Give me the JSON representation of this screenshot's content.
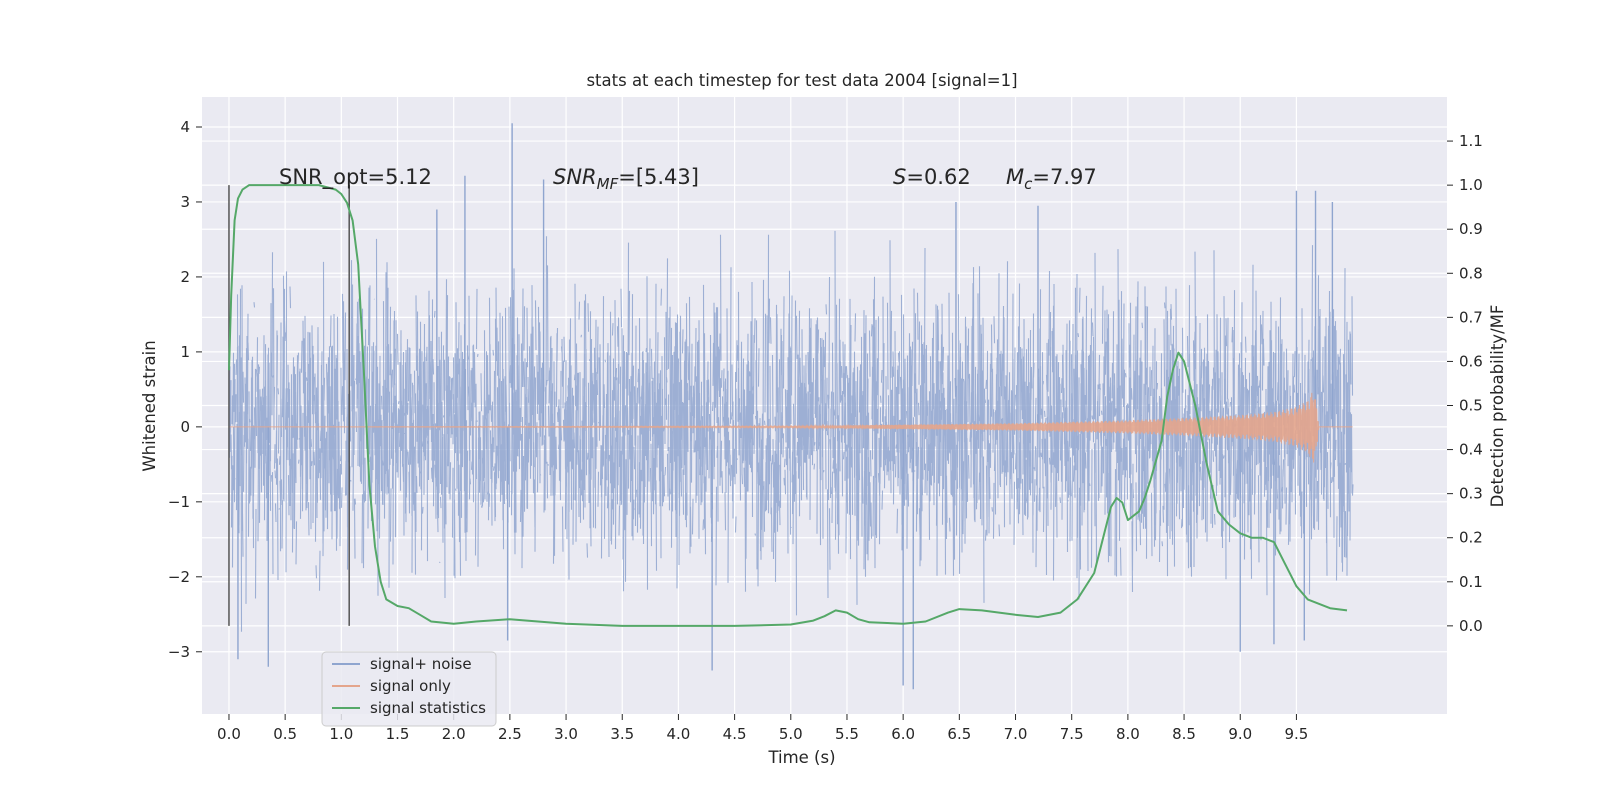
{
  "chart_data": {
    "type": "line",
    "title": "stats at each timestep for test data 2004 [signal=1]",
    "xlabel": "Time (s)",
    "ylabel": "Whitened strain",
    "y2label": "Detection probability/MF",
    "xlim": [
      -0.24,
      10.84
    ],
    "ylim": [
      -3.83,
      4.4
    ],
    "y2lim": [
      -0.2,
      1.2
    ],
    "x_ticks": [
      "0.0",
      "0.5",
      "1.0",
      "1.5",
      "2.0",
      "2.5",
      "3.0",
      "3.5",
      "4.0",
      "4.5",
      "5.0",
      "5.5",
      "6.0",
      "6.5",
      "7.0",
      "7.5",
      "8.0",
      "8.5",
      "9.0",
      "9.5"
    ],
    "y_ticks": [
      "4",
      "3",
      "2",
      "1",
      "0",
      "−1",
      "−2",
      "−3"
    ],
    "y2_ticks": [
      "1.1",
      "1.0",
      "0.9",
      "0.8",
      "0.7",
      "0.6",
      "0.5",
      "0.4",
      "0.3",
      "0.2",
      "0.1",
      "0.0"
    ],
    "grid": true,
    "legend_position": "lower-left",
    "annotations": {
      "snr_opt": "SNR_opt=5.12",
      "snr_mf_name": "SNR",
      "snr_mf_sub": "MF",
      "snr_mf_value": "=[5.43]",
      "s_name": "S",
      "s_value": "=0.62",
      "mc_name": "M",
      "mc_sub": "c",
      "mc_value": "=7.97"
    },
    "vertical_markers": [
      0.0,
      1.07
    ],
    "series": [
      {
        "name": "signal+ noise",
        "color": "#8fa5cf",
        "t_start": 0.0,
        "t_end": 10.0,
        "typical_abs": 2.0,
        "spikes": [
          {
            "x": 0.08,
            "y": -3.1
          },
          {
            "x": 0.35,
            "y": -3.2
          },
          {
            "x": 2.1,
            "y": 3.35
          },
          {
            "x": 2.52,
            "y": 4.05
          },
          {
            "x": 2.48,
            "y": -2.85
          },
          {
            "x": 2.8,
            "y": 3.3
          },
          {
            "x": 4.3,
            "y": -3.25
          },
          {
            "x": 6.0,
            "y": -3.45
          },
          {
            "x": 6.09,
            "y": -3.5
          },
          {
            "x": 6.47,
            "y": 3.0
          },
          {
            "x": 9.0,
            "y": -3.0
          },
          {
            "x": 9.3,
            "y": -2.9
          },
          {
            "x": 9.5,
            "y": 3.15
          },
          {
            "x": 9.57,
            "y": -2.85
          },
          {
            "x": 9.67,
            "y": 3.15
          },
          {
            "x": 9.82,
            "y": 3.0
          },
          {
            "x": 7.2,
            "y": 2.95
          },
          {
            "x": 1.85,
            "y": 2.9
          }
        ]
      },
      {
        "name": "signal only",
        "color": "#e4a58c",
        "x": [
          0.0,
          5.0,
          6.0,
          7.0,
          8.0,
          8.5,
          9.0,
          9.3,
          9.5,
          9.6,
          9.65,
          9.68,
          9.7,
          10.0
        ],
        "envelope": [
          0.0,
          0.01,
          0.03,
          0.05,
          0.09,
          0.12,
          0.16,
          0.2,
          0.27,
          0.35,
          0.5,
          0.3,
          0.0,
          0.0
        ]
      },
      {
        "name": "signal statistics",
        "color": "#55a868",
        "axis": "right",
        "x": [
          0.0,
          0.02,
          0.05,
          0.08,
          0.12,
          0.18,
          0.25,
          0.4,
          0.6,
          0.8,
          0.95,
          1.0,
          1.05,
          1.1,
          1.15,
          1.2,
          1.25,
          1.3,
          1.35,
          1.4,
          1.5,
          1.6,
          1.7,
          1.8,
          2.0,
          2.2,
          2.5,
          3.0,
          3.5,
          4.0,
          4.5,
          5.0,
          5.2,
          5.3,
          5.4,
          5.5,
          5.6,
          5.7,
          6.0,
          6.2,
          6.4,
          6.5,
          6.7,
          7.0,
          7.2,
          7.4,
          7.55,
          7.7,
          7.8,
          7.85,
          7.9,
          7.95,
          8.0,
          8.1,
          8.15,
          8.2,
          8.3,
          8.35,
          8.4,
          8.45,
          8.5,
          8.6,
          8.7,
          8.8,
          8.9,
          9.0,
          9.1,
          9.2,
          9.3,
          9.4,
          9.5,
          9.6,
          9.8,
          9.95
        ],
        "values": [
          0.58,
          0.75,
          0.92,
          0.97,
          0.99,
          1.0,
          1.0,
          1.0,
          1.0,
          1.0,
          0.99,
          0.98,
          0.96,
          0.92,
          0.82,
          0.58,
          0.32,
          0.18,
          0.1,
          0.06,
          0.045,
          0.04,
          0.025,
          0.01,
          0.005,
          0.01,
          0.015,
          0.005,
          0.0,
          0.0,
          0.0,
          0.003,
          0.012,
          0.022,
          0.035,
          0.03,
          0.015,
          0.008,
          0.005,
          0.01,
          0.03,
          0.038,
          0.035,
          0.025,
          0.02,
          0.03,
          0.06,
          0.12,
          0.22,
          0.27,
          0.29,
          0.28,
          0.24,
          0.26,
          0.29,
          0.33,
          0.42,
          0.52,
          0.58,
          0.62,
          0.6,
          0.5,
          0.37,
          0.26,
          0.23,
          0.21,
          0.2,
          0.2,
          0.19,
          0.14,
          0.09,
          0.06,
          0.04,
          0.035
        ]
      }
    ]
  }
}
